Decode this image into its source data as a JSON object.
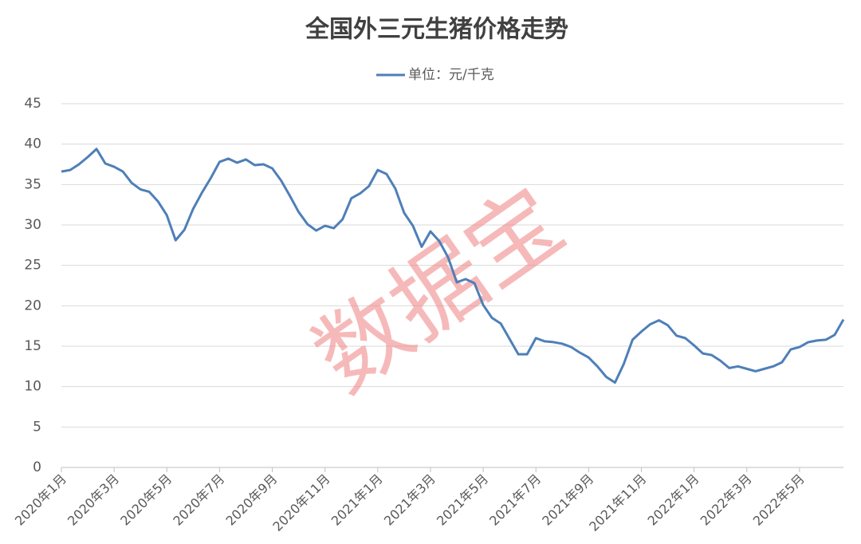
{
  "chart_data": {
    "type": "line",
    "title": "全国外三元生猪价格走势",
    "watermark": "数据宝",
    "categories": [
      "2020年1月",
      null,
      null,
      null,
      null,
      null,
      "2020年3月",
      null,
      null,
      null,
      null,
      null,
      "2020年5月",
      null,
      null,
      null,
      null,
      null,
      "2020年7月",
      null,
      null,
      null,
      null,
      null,
      "2020年9月",
      null,
      null,
      null,
      null,
      null,
      "2020年11月",
      null,
      null,
      null,
      null,
      null,
      "2021年1月",
      null,
      null,
      null,
      null,
      null,
      "2021年3月",
      null,
      null,
      null,
      null,
      null,
      "2021年5月",
      null,
      null,
      null,
      null,
      null,
      "2021年7月",
      null,
      null,
      null,
      null,
      null,
      "2021年9月",
      null,
      null,
      null,
      null,
      null,
      "2021年11月",
      null,
      null,
      null,
      null,
      null,
      "2022年1月",
      null,
      null,
      null,
      null,
      null,
      "2022年3月",
      null,
      null,
      null,
      null,
      null,
      "2022年5月",
      null,
      null,
      null,
      null,
      null
    ],
    "series": [
      {
        "name": "单位：元/千克",
        "color": "#4e7fb8",
        "values": [
          36.6,
          36.8,
          37.5,
          38.4,
          39.4,
          37.6,
          37.2,
          36.6,
          35.2,
          34.4,
          34.1,
          32.9,
          31.2,
          28.1,
          29.4,
          32.0,
          34.0,
          35.8,
          37.8,
          38.2,
          37.7,
          38.1,
          37.4,
          37.5,
          37.0,
          35.5,
          33.6,
          31.6,
          30.1,
          29.3,
          29.9,
          29.6,
          30.7,
          33.3,
          33.9,
          34.8,
          36.8,
          36.3,
          34.5,
          31.5,
          29.9,
          27.3,
          29.2,
          28.0,
          26.0,
          22.9,
          23.3,
          22.8,
          20.1,
          18.5,
          17.8,
          15.9,
          14.0,
          14.0,
          16.0,
          15.6,
          15.5,
          15.3,
          14.9,
          14.2,
          13.6,
          12.5,
          11.2,
          10.5,
          12.8,
          15.8,
          16.8,
          17.7,
          18.2,
          17.6,
          16.3,
          16.0,
          15.1,
          14.1,
          13.9,
          13.2,
          12.3,
          12.5,
          12.2,
          11.9,
          12.2,
          12.5,
          13.0,
          14.6,
          14.9,
          15.5,
          15.7,
          15.8,
          16.4,
          18.3
        ]
      }
    ],
    "ylim": [
      0,
      45
    ],
    "yticks": [
      0,
      5,
      10,
      15,
      20,
      25,
      30,
      35,
      40,
      45
    ],
    "grid": true,
    "legend": "top"
  }
}
